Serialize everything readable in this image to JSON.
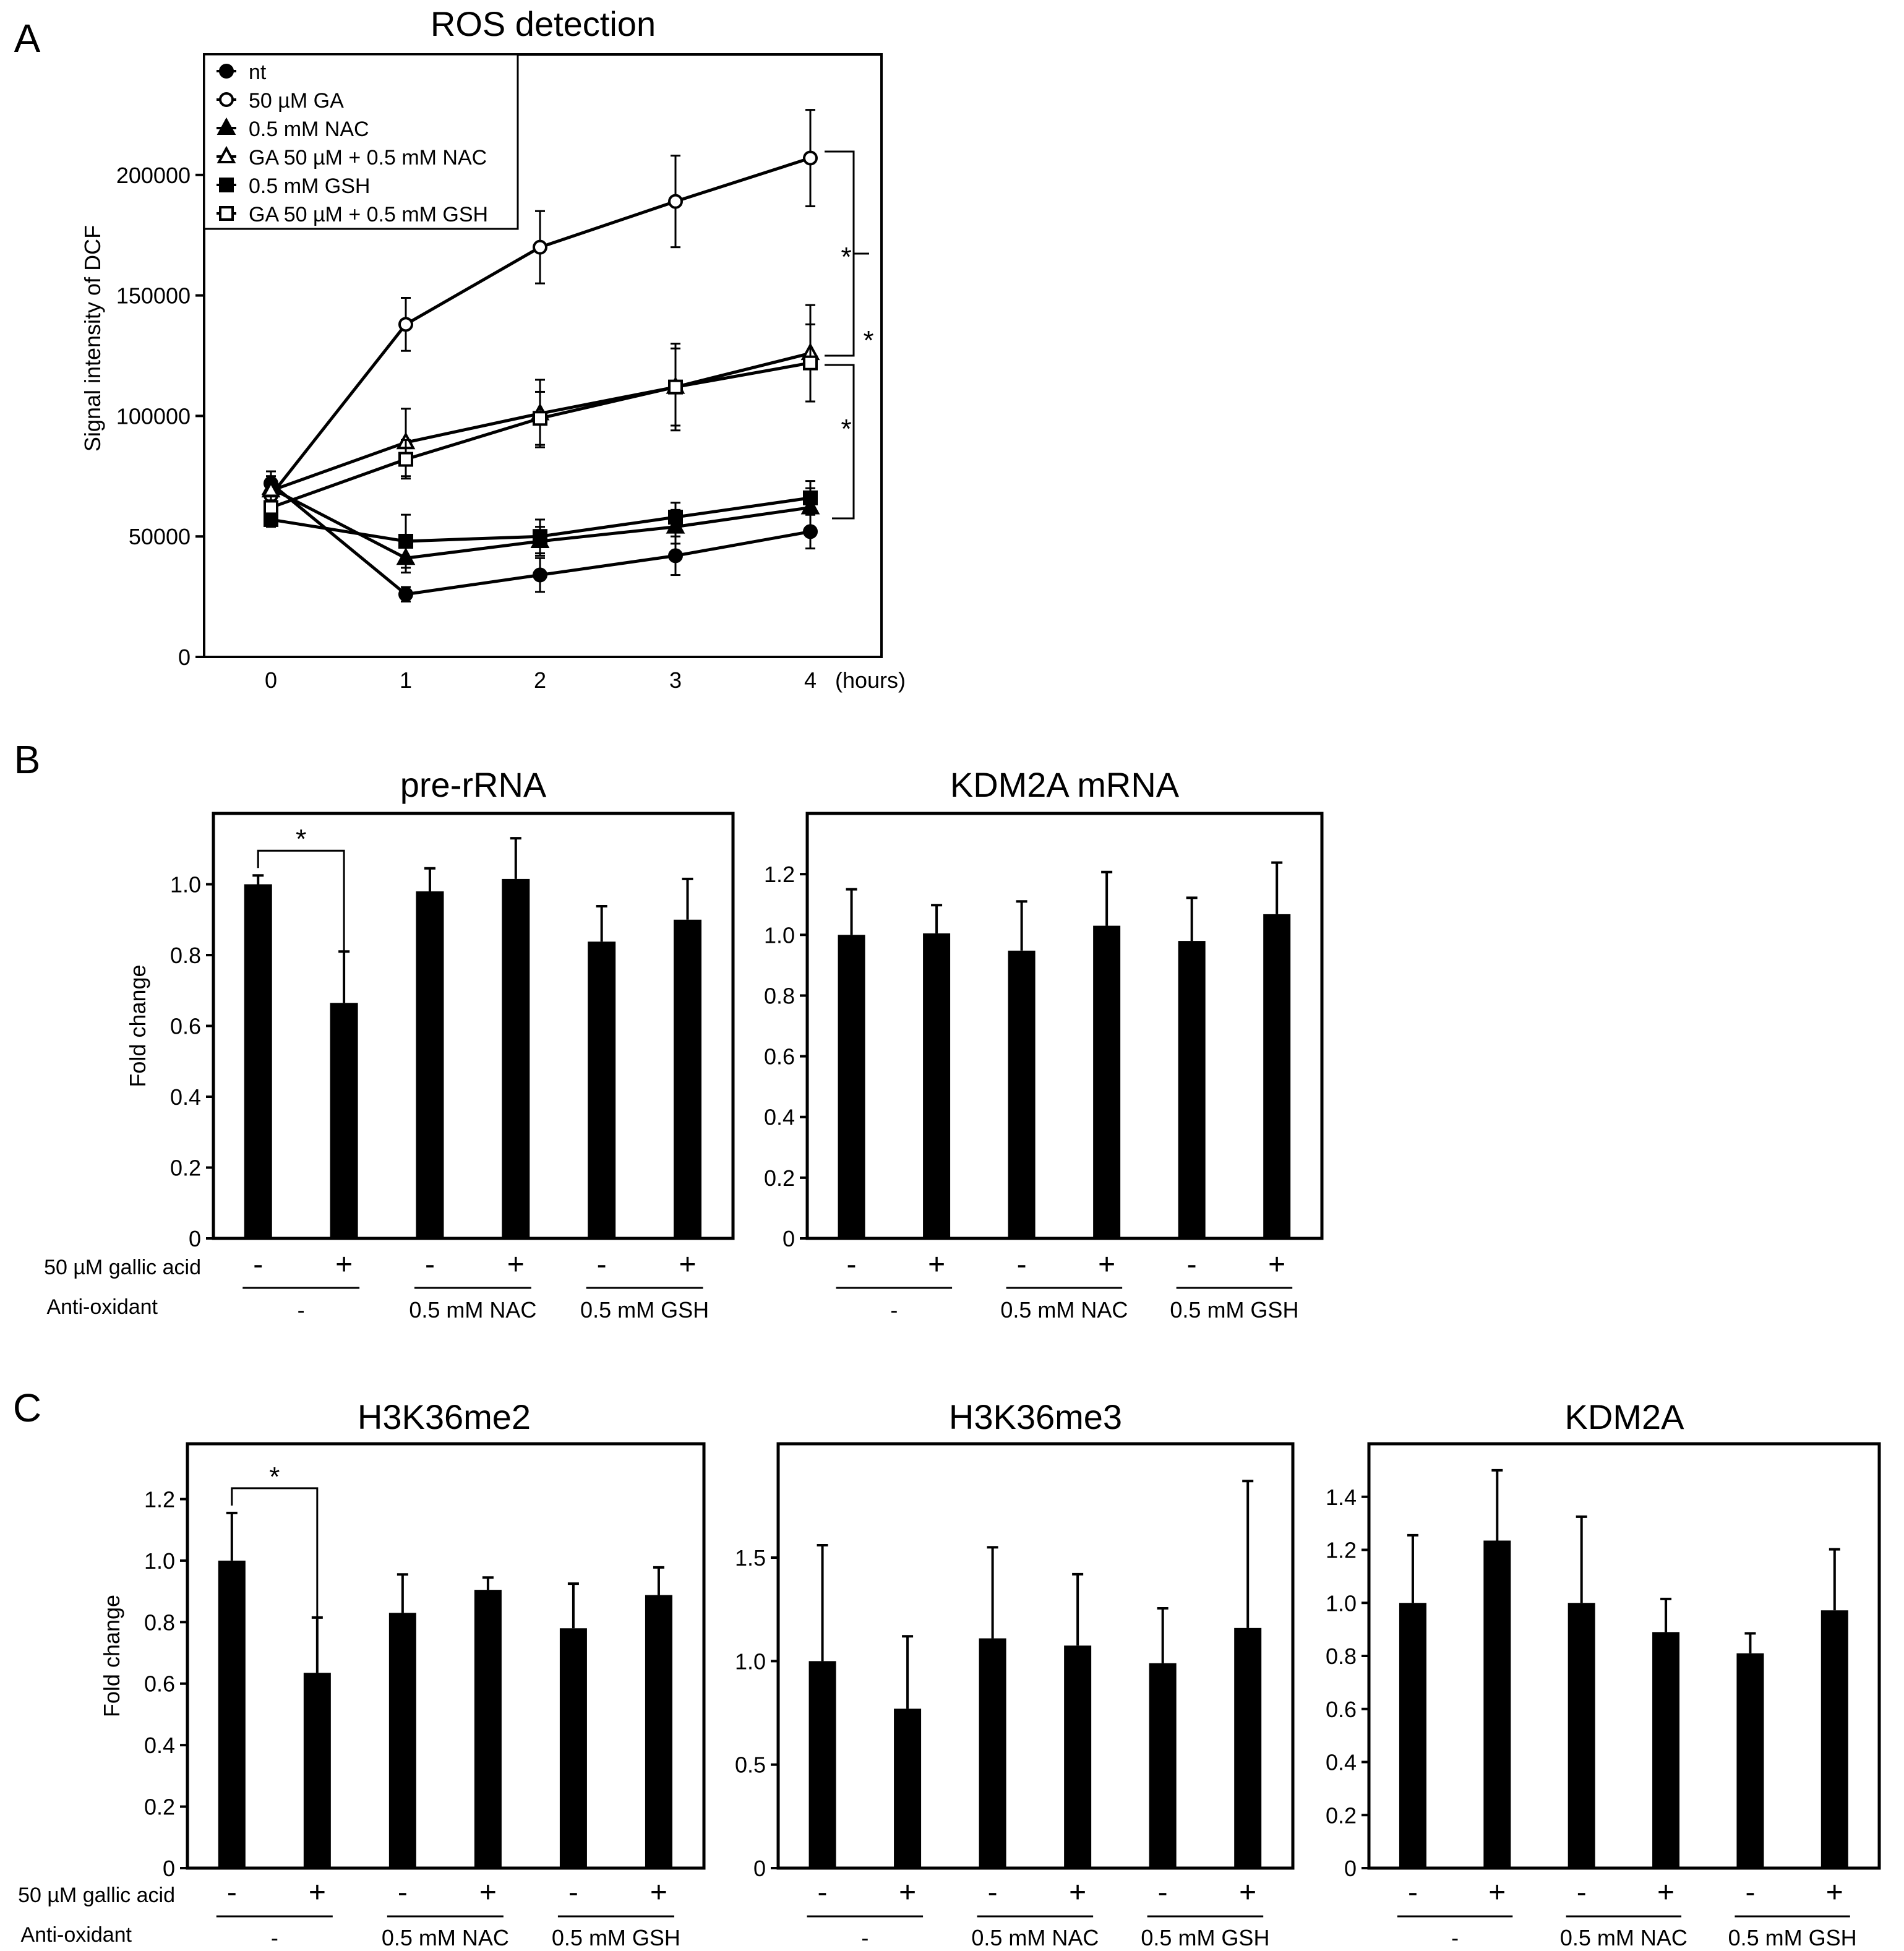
{
  "figure": {
    "panel_labels": [
      "A",
      "B",
      "C"
    ],
    "y_label_A": "Signal intensity of DCF",
    "y_label_fold": "Fold change",
    "row_gallic_label": "50 µM gallic acid",
    "row_antiox_label": "Anti-oxidant",
    "signs": [
      "-",
      "+",
      "-",
      "+",
      "-",
      "+"
    ],
    "group_labels": [
      "-",
      "0.5 mM NAC",
      "0.5 mM GSH"
    ],
    "significance_mark": "*",
    "hours_label": "(hours)",
    "colors": {
      "ink": "#000000",
      "background": "#ffffff"
    }
  },
  "chart_data": [
    {
      "id": "A",
      "type": "line",
      "title": "ROS detection",
      "xlabel": "(hours)",
      "ylabel": "Signal intensity of DCF",
      "x": [
        0,
        1,
        2,
        3,
        4
      ],
      "x_tick_labels": [
        "0",
        "1",
        "2",
        "3",
        "4"
      ],
      "ylim": [
        0,
        250000
      ],
      "y_ticks": [
        0,
        50000,
        100000,
        150000,
        200000
      ],
      "y_tick_labels": [
        "0",
        "50000",
        "100000",
        "150000",
        "200000"
      ],
      "legend_position": "top-left",
      "series": [
        {
          "name": "nt",
          "marker": "circle",
          "filled": true,
          "values": [
            72000,
            26000,
            34000,
            42000,
            52000
          ],
          "errors": [
            5000,
            3000,
            7000,
            8000,
            7000
          ]
        },
        {
          "name": "50 µM GA",
          "marker": "circle",
          "filled": false,
          "values": [
            67000,
            138000,
            170000,
            189000,
            207000
          ],
          "errors": [
            5000,
            11000,
            15000,
            19000,
            20000
          ]
        },
        {
          "name": "0.5 mM NAC",
          "marker": "triangle",
          "filled": true,
          "values": [
            70000,
            41000,
            48000,
            54000,
            62000
          ],
          "errors": [
            5000,
            6000,
            6000,
            7000,
            8000
          ]
        },
        {
          "name": "GA 50 µM + 0.5 mM NAC",
          "marker": "triangle",
          "filled": false,
          "values": [
            69000,
            89000,
            101000,
            112000,
            126000
          ],
          "errors": [
            6000,
            14000,
            14000,
            18000,
            20000
          ]
        },
        {
          "name": "0.5 mM GSH",
          "marker": "square",
          "filled": true,
          "values": [
            57000,
            48000,
            50000,
            58000,
            66000
          ],
          "errors": [
            3000,
            11000,
            7000,
            6000,
            7000
          ]
        },
        {
          "name": "GA 50 µM + 0.5 mM GSH",
          "marker": "square",
          "filled": false,
          "values": [
            62000,
            82000,
            99000,
            112000,
            122000
          ],
          "errors": [
            5000,
            8000,
            11000,
            16000,
            16000
          ]
        }
      ],
      "significance": [
        "*",
        "*",
        "*"
      ]
    },
    {
      "id": "B1",
      "type": "bar",
      "title": "pre-rRNA",
      "ylabel": "Fold change",
      "ylim": [
        0,
        1.2
      ],
      "y_ticks": [
        0,
        0.2,
        0.4,
        0.6,
        0.8,
        1.0
      ],
      "y_tick_labels": [
        "0",
        "0.2",
        "0.4",
        "0.6",
        "0.8",
        "1.0"
      ],
      "values": [
        1.0,
        0.665,
        0.98,
        1.015,
        0.838,
        0.9
      ],
      "errors": [
        0.025,
        0.145,
        0.065,
        0.115,
        0.1,
        0.115
      ],
      "significance": "*"
    },
    {
      "id": "B2",
      "type": "bar",
      "title": "KDM2A mRNA",
      "ylabel": "",
      "ylim": [
        0,
        1.4
      ],
      "y_ticks": [
        0,
        0.2,
        0.4,
        0.6,
        0.8,
        1.0,
        1.2
      ],
      "y_tick_labels": [
        "0",
        "0.2",
        "0.4",
        "0.6",
        "0.8",
        "1.0",
        "1.2"
      ],
      "values": [
        1.0,
        1.005,
        0.948,
        1.03,
        0.98,
        1.068
      ],
      "errors": [
        0.15,
        0.093,
        0.162,
        0.177,
        0.142,
        0.17
      ]
    },
    {
      "id": "C1",
      "type": "bar",
      "title": "H3K36me2",
      "ylabel": "Fold change",
      "ylim": [
        0,
        1.38
      ],
      "y_ticks": [
        0,
        0.2,
        0.4,
        0.6,
        0.8,
        1.0,
        1.2
      ],
      "y_tick_labels": [
        "0",
        "0.2",
        "0.4",
        "0.6",
        "0.8",
        "1.0",
        "1.2"
      ],
      "values": [
        1.0,
        0.635,
        0.83,
        0.905,
        0.78,
        0.888
      ],
      "errors": [
        0.155,
        0.18,
        0.125,
        0.04,
        0.145,
        0.09
      ],
      "significance": "*"
    },
    {
      "id": "C2",
      "type": "bar",
      "title": "H3K36me3",
      "ylabel": "",
      "ylim": [
        0,
        2.05
      ],
      "y_ticks": [
        0,
        0.5,
        1.0,
        1.5
      ],
      "y_tick_labels": [
        "0",
        "0.5",
        "1.0",
        "1.5"
      ],
      "values": [
        1.0,
        0.77,
        1.11,
        1.075,
        0.99,
        1.16
      ],
      "errors": [
        0.56,
        0.35,
        0.44,
        0.345,
        0.265,
        0.71
      ]
    },
    {
      "id": "C3",
      "type": "bar",
      "title": "KDM2A",
      "ylabel": "",
      "ylim": [
        0,
        1.6
      ],
      "y_ticks": [
        0,
        0.2,
        0.4,
        0.6,
        0.8,
        1.0,
        1.2,
        1.4
      ],
      "y_tick_labels": [
        "0",
        "0.2",
        "0.4",
        "0.6",
        "0.8",
        "1.0",
        "1.2",
        "1.4"
      ],
      "values": [
        1.0,
        1.235,
        1.0,
        0.89,
        0.81,
        0.972
      ],
      "errors": [
        0.255,
        0.265,
        0.325,
        0.125,
        0.075,
        0.23
      ]
    }
  ]
}
